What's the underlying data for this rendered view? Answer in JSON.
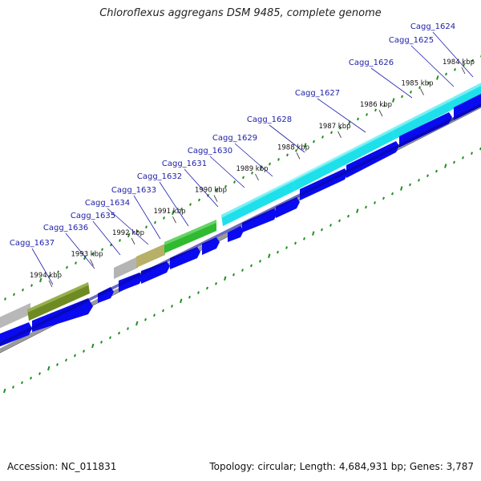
{
  "title": "Chloroflexus aggregans DSM 9485, complete genome",
  "accession_label": "Accession: NC_011831",
  "topology_label": "Topology: circular; Length: 4,684,931 bp; Genes: 3,787",
  "colors": {
    "label_blue": "#1e1ea8",
    "cds_blue": "#0a0af0",
    "cyan": "#1ee0ea",
    "green": "#2fba2f",
    "olive": "#6e8a22",
    "khaki": "#b8b268",
    "gray": "#b4b4b4",
    "tick_green": "#1f8f1f",
    "backbone": "#888888"
  },
  "kbp_ticks": [
    {
      "label": "1984 kbp",
      "pos": 1984
    },
    {
      "label": "1985 kbp",
      "pos": 1985
    },
    {
      "label": "1986 kbp",
      "pos": 1986
    },
    {
      "label": "1987 kbp",
      "pos": 1987
    },
    {
      "label": "1988 kbp",
      "pos": 1988
    },
    {
      "label": "1989 kbp",
      "pos": 1989
    },
    {
      "label": "1990 kbp",
      "pos": 1990
    },
    {
      "label": "1991 kbp",
      "pos": 1991
    },
    {
      "label": "1992 kbp",
      "pos": 1992
    },
    {
      "label": "1993 kbp",
      "pos": 1993
    },
    {
      "label": "1994 kbp",
      "pos": 1994
    }
  ],
  "gene_labels": [
    "Cagg_1624",
    "Cagg_1625",
    "Cagg_1626",
    "Cagg_1627",
    "Cagg_1628",
    "Cagg_1629",
    "Cagg_1630",
    "Cagg_1631",
    "Cagg_1632",
    "Cagg_1633",
    "Cagg_1634",
    "Cagg_1635",
    "Cagg_1636",
    "Cagg_1637"
  ]
}
